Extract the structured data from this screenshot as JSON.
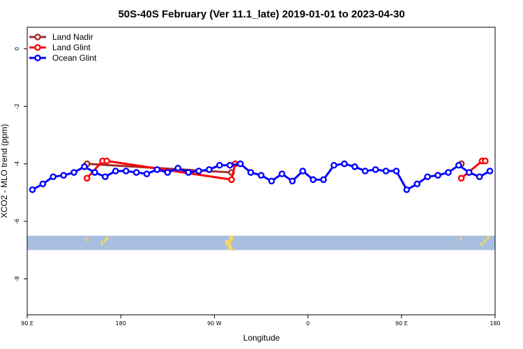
{
  "chart_data": {
    "type": "line",
    "title": "50S-40S February (Ver 11.1_late)   2019-01-01 to 2023-04-30",
    "xlabel": "Longitude",
    "ylabel": "XCO2 - MLO trend (ppm)",
    "xlim": [
      90,
      540
    ],
    "ylim": [
      -9.25,
      0.75
    ],
    "x_ticks": [
      {
        "value": 90,
        "label": "90 E"
      },
      {
        "value": 180,
        "label": "180"
      },
      {
        "value": 270,
        "label": "90 W"
      },
      {
        "value": 360,
        "label": "0"
      },
      {
        "value": 450,
        "label": "90 E"
      },
      {
        "value": 540,
        "label": "180"
      }
    ],
    "y_ticks": [
      {
        "value": 0,
        "label": "0"
      },
      {
        "value": -2,
        "label": "-2"
      },
      {
        "value": -4,
        "label": "-4"
      },
      {
        "value": -6,
        "label": "-6"
      },
      {
        "value": -8,
        "label": "-8"
      }
    ],
    "legend_position": "top-left",
    "grid": false,
    "series": [
      {
        "name": "Land Nadir",
        "color": "#a52a2a",
        "points": [
          [
            147.5,
            -4.0
          ],
          [
            286.5,
            -4.3
          ],
          [
            400,
            null
          ],
          [
            507.5,
            -4.0
          ]
        ]
      },
      {
        "name": "Land Glint",
        "color": "#ff0000",
        "points": [
          [
            147.5,
            -4.5
          ],
          [
            162.5,
            -3.9
          ],
          [
            166.5,
            -3.9
          ],
          [
            286.5,
            -4.55
          ],
          [
            290,
            -4.0
          ],
          [
            400,
            null
          ],
          [
            507.5,
            -4.5
          ],
          [
            527.5,
            -3.9
          ],
          [
            530.5,
            -3.9
          ]
        ]
      },
      {
        "name": "Ocean Glint",
        "color": "#0000ff",
        "points": [
          [
            95,
            -4.9
          ],
          [
            105,
            -4.7
          ],
          [
            115,
            -4.45
          ],
          [
            125,
            -4.4
          ],
          [
            135,
            -4.3
          ],
          [
            145,
            -4.1
          ],
          [
            155,
            -4.3
          ],
          [
            165,
            -4.45
          ],
          [
            175,
            -4.25
          ],
          [
            185,
            -4.25
          ],
          [
            195,
            -4.3
          ],
          [
            205,
            -4.35
          ],
          [
            215,
            -4.2
          ],
          [
            225,
            -4.3
          ],
          [
            235,
            -4.15
          ],
          [
            245,
            -4.3
          ],
          [
            255,
            -4.25
          ],
          [
            265,
            -4.2
          ],
          [
            275,
            -4.05
          ],
          [
            285,
            -4.05
          ],
          [
            295,
            -4.0
          ],
          [
            305,
            -4.3
          ],
          [
            315,
            -4.4
          ],
          [
            325,
            -4.6
          ],
          [
            335,
            -4.35
          ],
          [
            345,
            -4.6
          ],
          [
            355,
            -4.25
          ],
          [
            365,
            -4.55
          ],
          [
            375,
            -4.55
          ],
          [
            385,
            -4.05
          ],
          [
            395,
            -4.0
          ],
          [
            405,
            -4.1
          ],
          [
            415,
            -4.25
          ],
          [
            425,
            -4.2
          ],
          [
            435,
            -4.25
          ],
          [
            445,
            -4.25
          ],
          [
            455,
            -4.9
          ],
          [
            465,
            -4.7
          ],
          [
            475,
            -4.45
          ],
          [
            485,
            -4.4
          ],
          [
            495,
            -4.3
          ],
          [
            505,
            -4.05
          ],
          [
            515,
            -4.3
          ],
          [
            525,
            -4.45
          ],
          [
            535,
            -4.25
          ]
        ]
      }
    ],
    "colors": {
      "ocean_band": "#a9bfdf",
      "land_patch": "#f2d76a"
    },
    "band_y": [
      -6.5,
      -7.0
    ]
  }
}
